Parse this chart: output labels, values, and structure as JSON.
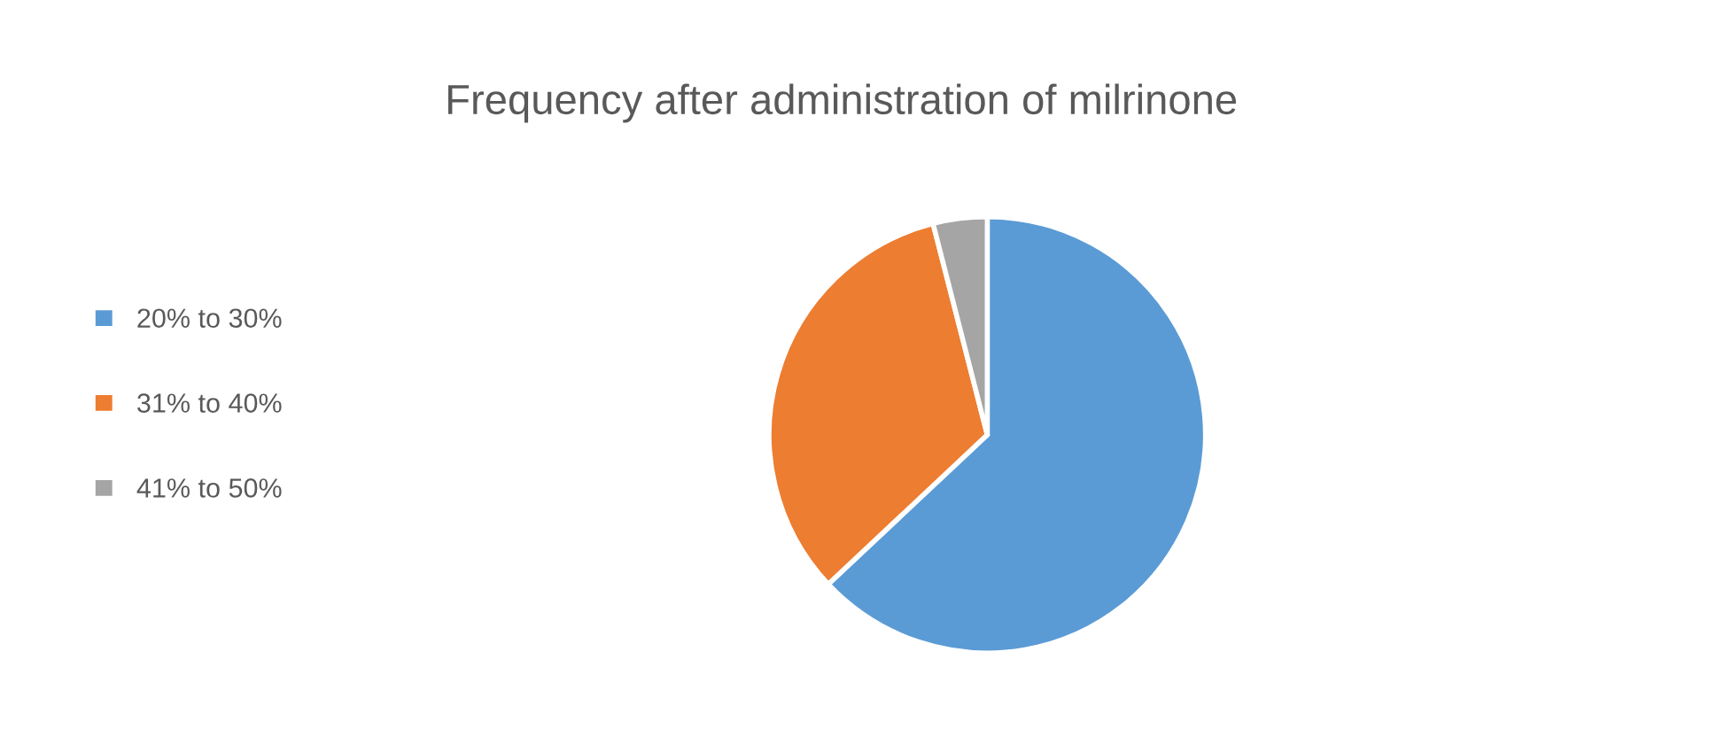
{
  "chart_data": {
    "type": "pie",
    "title": "Frequency after administration of milrinone",
    "categories": [
      "20% to 30%",
      "31% to 40%",
      "41% to 50%"
    ],
    "values": [
      63,
      33,
      4
    ],
    "colors": [
      "#5b9bd5",
      "#ed7d31",
      "#a5a5a5"
    ],
    "legend": "left"
  }
}
